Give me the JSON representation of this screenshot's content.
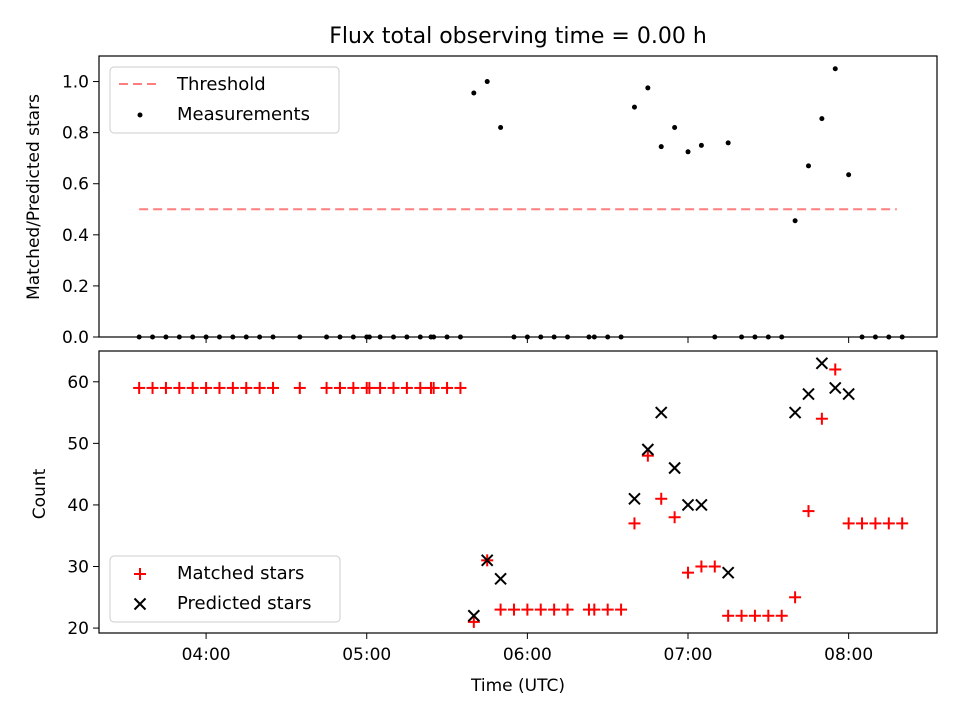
{
  "chart_data": [
    {
      "type": "scatter",
      "title": "Flux total observing time = 0.00 h",
      "xlabel": "",
      "ylabel": "Matched/Predicted stars",
      "xlim": [
        "03:20",
        "08:33"
      ],
      "ylim": [
        0,
        1.1
      ],
      "yticks": [
        0.0,
        0.2,
        0.4,
        0.6,
        0.8,
        1.0
      ],
      "ytick_labels": [
        "0.0",
        "0.2",
        "0.4",
        "0.6",
        "0.8",
        "1.0"
      ],
      "xticks": [
        "04:00",
        "05:00",
        "06:00",
        "07:00",
        "08:00"
      ],
      "grid": false,
      "legend": "upper-left",
      "threshold": {
        "name": "Threshold",
        "y": 0.5,
        "x_start": "03:35",
        "x_end": "08:18",
        "color": "#ff7f7f",
        "style": "dashed"
      },
      "series": [
        {
          "name": "Measurements",
          "color": "#000000",
          "marker": "dot",
          "points": [
            [
              "03:35",
              0
            ],
            [
              "03:40",
              0
            ],
            [
              "03:45",
              0
            ],
            [
              "03:50",
              0
            ],
            [
              "03:55",
              0
            ],
            [
              "04:00",
              0
            ],
            [
              "04:05",
              0
            ],
            [
              "04:10",
              0
            ],
            [
              "04:15",
              0
            ],
            [
              "04:20",
              0
            ],
            [
              "04:25",
              0
            ],
            [
              "04:35",
              0
            ],
            [
              "04:45",
              0
            ],
            [
              "04:50",
              0
            ],
            [
              "04:55",
              0
            ],
            [
              "05:00",
              0
            ],
            [
              "05:01",
              0
            ],
            [
              "05:05",
              0
            ],
            [
              "05:10",
              0
            ],
            [
              "05:15",
              0
            ],
            [
              "05:20",
              0
            ],
            [
              "05:24",
              0
            ],
            [
              "05:25",
              0
            ],
            [
              "05:30",
              0
            ],
            [
              "05:35",
              0
            ],
            [
              "05:40",
              0.955
            ],
            [
              "05:45",
              1.0
            ],
            [
              "05:50",
              0.82
            ],
            [
              "05:55",
              0
            ],
            [
              "06:00",
              0
            ],
            [
              "06:05",
              0
            ],
            [
              "06:10",
              0
            ],
            [
              "06:15",
              0
            ],
            [
              "06:23",
              0
            ],
            [
              "06:25",
              0
            ],
            [
              "06:30",
              0
            ],
            [
              "06:35",
              0
            ],
            [
              "06:40",
              0.9
            ],
            [
              "06:45",
              0.975
            ],
            [
              "06:50",
              0.745
            ],
            [
              "06:55",
              0.82
            ],
            [
              "07:00",
              0.725
            ],
            [
              "07:05",
              0.75
            ],
            [
              "07:10",
              0
            ],
            [
              "07:15",
              0.76
            ],
            [
              "07:20",
              0
            ],
            [
              "07:25",
              0
            ],
            [
              "07:30",
              0
            ],
            [
              "07:35",
              0
            ],
            [
              "07:40",
              0.455
            ],
            [
              "07:45",
              0.67
            ],
            [
              "07:50",
              0.855
            ],
            [
              "07:55",
              1.05
            ],
            [
              "08:00",
              0.635
            ],
            [
              "08:05",
              0
            ],
            [
              "08:10",
              0
            ],
            [
              "08:15",
              0
            ],
            [
              "08:20",
              0
            ]
          ]
        }
      ]
    },
    {
      "type": "scatter",
      "title": "",
      "xlabel": "Time (UTC)",
      "ylabel": "Count",
      "xlim": [
        "03:20",
        "08:33"
      ],
      "ylim": [
        19.2,
        65
      ],
      "yticks": [
        20,
        30,
        40,
        50,
        60
      ],
      "ytick_labels": [
        "20",
        "30",
        "40",
        "50",
        "60"
      ],
      "xticks": [
        "04:00",
        "05:00",
        "06:00",
        "07:00",
        "08:00"
      ],
      "grid": false,
      "legend": "lower-left",
      "series": [
        {
          "name": "Matched stars",
          "color": "#ff0000",
          "marker": "plus",
          "points": [
            [
              "03:35",
              59
            ],
            [
              "03:40",
              59
            ],
            [
              "03:45",
              59
            ],
            [
              "03:50",
              59
            ],
            [
              "03:55",
              59
            ],
            [
              "04:00",
              59
            ],
            [
              "04:05",
              59
            ],
            [
              "04:10",
              59
            ],
            [
              "04:15",
              59
            ],
            [
              "04:20",
              59
            ],
            [
              "04:25",
              59
            ],
            [
              "04:35",
              59
            ],
            [
              "04:45",
              59
            ],
            [
              "04:50",
              59
            ],
            [
              "04:55",
              59
            ],
            [
              "05:00",
              59
            ],
            [
              "05:01",
              59
            ],
            [
              "05:05",
              59
            ],
            [
              "05:10",
              59
            ],
            [
              "05:15",
              59
            ],
            [
              "05:20",
              59
            ],
            [
              "05:24",
              59
            ],
            [
              "05:25",
              59
            ],
            [
              "05:30",
              59
            ],
            [
              "05:35",
              59
            ],
            [
              "05:40",
              21
            ],
            [
              "05:45",
              31
            ],
            [
              "05:50",
              23
            ],
            [
              "05:55",
              23
            ],
            [
              "06:00",
              23
            ],
            [
              "06:05",
              23
            ],
            [
              "06:10",
              23
            ],
            [
              "06:15",
              23
            ],
            [
              "06:23",
              23
            ],
            [
              "06:25",
              23
            ],
            [
              "06:30",
              23
            ],
            [
              "06:35",
              23
            ],
            [
              "06:40",
              37
            ],
            [
              "06:45",
              48
            ],
            [
              "06:50",
              41
            ],
            [
              "06:55",
              38
            ],
            [
              "07:00",
              29
            ],
            [
              "07:05",
              30
            ],
            [
              "07:10",
              30
            ],
            [
              "07:15",
              22
            ],
            [
              "07:20",
              22
            ],
            [
              "07:25",
              22
            ],
            [
              "07:30",
              22
            ],
            [
              "07:35",
              22
            ],
            [
              "07:40",
              25
            ],
            [
              "07:45",
              39
            ],
            [
              "07:50",
              54
            ],
            [
              "07:55",
              62
            ],
            [
              "08:00",
              37
            ],
            [
              "08:05",
              37
            ],
            [
              "08:10",
              37
            ],
            [
              "08:15",
              37
            ],
            [
              "08:20",
              37
            ]
          ]
        },
        {
          "name": "Predicted stars",
          "color": "#000000",
          "marker": "x",
          "points": [
            [
              "05:40",
              22
            ],
            [
              "05:45",
              31
            ],
            [
              "05:50",
              28
            ],
            [
              "06:40",
              41
            ],
            [
              "06:45",
              49
            ],
            [
              "06:50",
              55
            ],
            [
              "06:55",
              46
            ],
            [
              "07:00",
              40
            ],
            [
              "07:05",
              40
            ],
            [
              "07:15",
              29
            ],
            [
              "07:40",
              55
            ],
            [
              "07:45",
              58
            ],
            [
              "07:50",
              63
            ],
            [
              "07:55",
              59
            ],
            [
              "08:00",
              58
            ]
          ]
        }
      ]
    }
  ]
}
